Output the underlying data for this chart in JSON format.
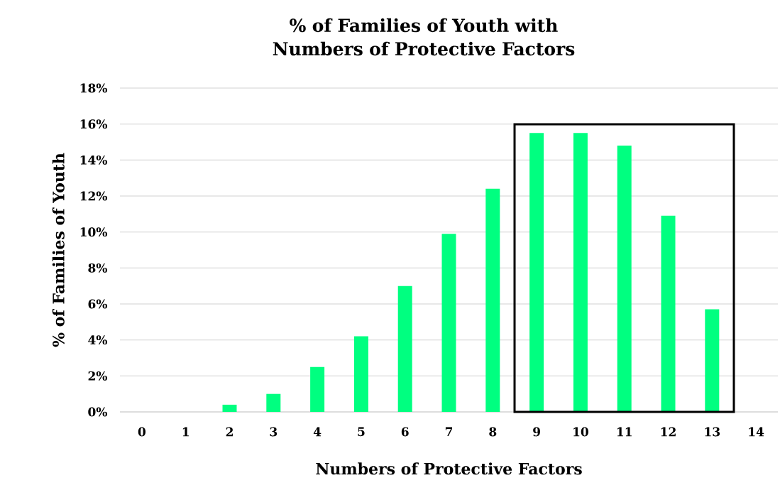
{
  "chart_data": {
    "type": "bar",
    "title": "% of Families of Youth with Numbers of Protective Factors",
    "xlabel": "Numbers of Protective Factors",
    "ylabel": "% of Families of Youth",
    "categories": [
      "0",
      "1",
      "2",
      "3",
      "4",
      "5",
      "6",
      "7",
      "8",
      "9",
      "10",
      "11",
      "12",
      "13",
      "14"
    ],
    "values": [
      0,
      0,
      0.4,
      1.0,
      2.5,
      4.2,
      7.0,
      9.9,
      12.4,
      15.5,
      15.5,
      14.8,
      10.9,
      5.7,
      0
    ],
    "color": "#00ff80",
    "ylim": [
      0,
      18
    ],
    "yticks": [
      {
        "value": 0,
        "label": "0%"
      },
      {
        "value": 2,
        "label": "2%"
      },
      {
        "value": 4,
        "label": "4%"
      },
      {
        "value": 6,
        "label": "6%"
      },
      {
        "value": 8,
        "label": "8%"
      },
      {
        "value": 10,
        "label": "10%"
      },
      {
        "value": 12,
        "label": "12%"
      },
      {
        "value": 14,
        "label": "14%"
      },
      {
        "value": 16,
        "label": "16%"
      },
      {
        "value": 18,
        "label": "18%"
      }
    ],
    "grid": "y"
  }
}
